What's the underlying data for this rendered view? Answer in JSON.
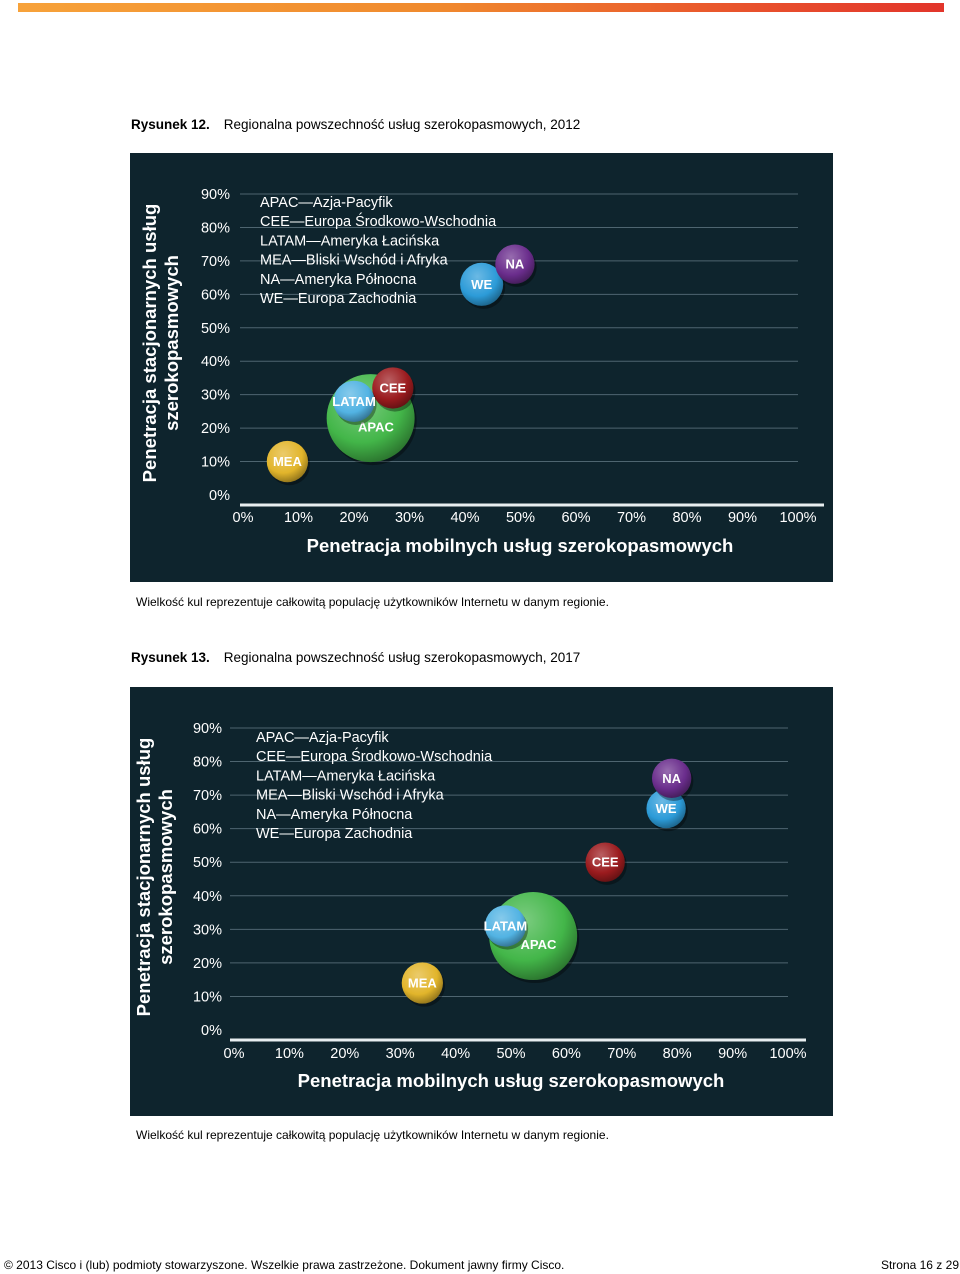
{
  "figures": [
    {
      "number": "Rysunek 12.",
      "caption": "Regionalna powszechność usług szerokopasmowych, 2012",
      "note": "Wielkość kul reprezentuje całkowitą populację użytkowników Internetu w danym regionie."
    },
    {
      "number": "Rysunek 13.",
      "caption": "Regionalna powszechność usług szerokopasmowych, 2017",
      "note": "Wielkość kul reprezentuje całkowitą populację użytkowników Internetu w danym regionie."
    }
  ],
  "chart_data": [
    {
      "type": "scatter",
      "xlabel": "Penetracja mobilnych usług szerokopasmowych",
      "ylabel": "Penetracja stacjonarnych usług szerokopasmowych",
      "xlim": [
        0,
        100
      ],
      "ylim": [
        0,
        90
      ],
      "x_ticks": [
        "0%",
        "10%",
        "20%",
        "30%",
        "40%",
        "50%",
        "60%",
        "70%",
        "80%",
        "90%",
        "100%"
      ],
      "y_ticks": [
        "0%",
        "10%",
        "20%",
        "30%",
        "40%",
        "50%",
        "60%",
        "70%",
        "80%",
        "90%"
      ],
      "legend": [
        "APAC—Azja-Pacyfik",
        "CEE—Europa Środkowo-Wschodnia",
        "LATAM—Ameryka Łacińska",
        "MEA—Bliski Wschód i Afryka",
        "NA—Ameryka Północna",
        "WE—Europa Zachodnia"
      ],
      "grid": true,
      "points": [
        {
          "label": "APAC",
          "x": 23,
          "y": 23,
          "size": 1.0,
          "color": "#43b649"
        },
        {
          "label": "CEE",
          "x": 27,
          "y": 32,
          "size": 0.22,
          "color": "#9b1b1e"
        },
        {
          "label": "LATAM",
          "x": 20,
          "y": 28,
          "size": 0.22,
          "color": "#52b3e3"
        },
        {
          "label": "MEA",
          "x": 8,
          "y": 10,
          "size": 0.22,
          "color": "#e2b52b"
        },
        {
          "label": "WE",
          "x": 43,
          "y": 63,
          "size": 0.24,
          "color": "#2c9bd8"
        },
        {
          "label": "NA",
          "x": 49,
          "y": 69,
          "size": 0.2,
          "color": "#6a2d8c"
        }
      ]
    },
    {
      "type": "scatter",
      "xlabel": "Penetracja mobilnych usług szerokopasmowych",
      "ylabel": "Penetracja stacjonarnych usług szerokopasmowych",
      "xlim": [
        0,
        100
      ],
      "ylim": [
        0,
        90
      ],
      "x_ticks": [
        "0%",
        "10%",
        "20%",
        "30%",
        "40%",
        "50%",
        "60%",
        "70%",
        "80%",
        "90%",
        "100%"
      ],
      "y_ticks": [
        "0%",
        "10%",
        "20%",
        "30%",
        "40%",
        "50%",
        "60%",
        "70%",
        "80%",
        "90%"
      ],
      "legend": [
        "APAC—Azja-Pacyfik",
        "CEE—Europa Środkowo-Wschodnia",
        "LATAM—Ameryka Łacińska",
        "MEA—Bliski Wschód i Afryka",
        "NA—Ameryka Północna",
        "WE—Europa Zachodnia"
      ],
      "grid": true,
      "points": [
        {
          "label": "APAC",
          "x": 54,
          "y": 28,
          "size": 1.0,
          "color": "#43b649"
        },
        {
          "label": "LATAM",
          "x": 49,
          "y": 31,
          "size": 0.22,
          "color": "#52b3e3"
        },
        {
          "label": "MEA",
          "x": 34,
          "y": 14,
          "size": 0.22,
          "color": "#e2b52b"
        },
        {
          "label": "CEE",
          "x": 67,
          "y": 50,
          "size": 0.2,
          "color": "#9b1b1e"
        },
        {
          "label": "WE",
          "x": 78,
          "y": 66,
          "size": 0.2,
          "color": "#2c9bd8"
        },
        {
          "label": "NA",
          "x": 79,
          "y": 75,
          "size": 0.2,
          "color": "#6a2d8c"
        }
      ]
    }
  ],
  "footer": {
    "left": "© 2013 Cisco i (lub) podmioty stowarzyszone. Wszelkie prawa zastrzeżone. Dokument jawny firmy Cisco.",
    "right": "Strona 16 z 29"
  }
}
